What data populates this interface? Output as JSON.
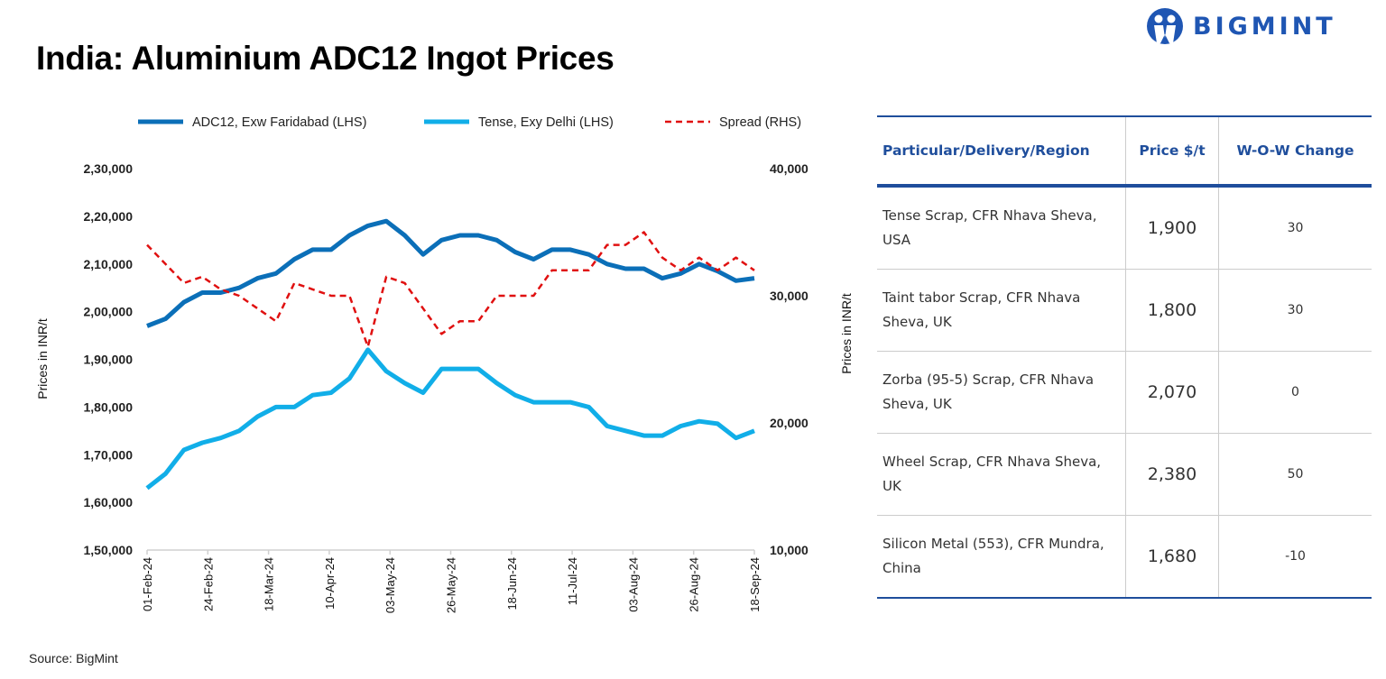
{
  "header": {
    "title": "India: Aluminium ADC12 Ingot Prices",
    "logo_text": "BIGMINT"
  },
  "source": "Source: BigMint",
  "colors": {
    "adc12": "#0b6fb8",
    "tense": "#11aee8",
    "spread": "#e01010",
    "table_accent": "#1f4e9c",
    "positive": "#3aa55a",
    "negative": "#e03a3a"
  },
  "chart_data": {
    "type": "line",
    "title": "India: Aluminium ADC12 Ingot Prices",
    "ylabel": "Prices in INR/t",
    "y2label": "Prices in INR/t",
    "ylim": [
      150000,
      230000
    ],
    "y2lim": [
      10000,
      40000
    ],
    "yticks": [
      "1,50,000",
      "1,60,000",
      "1,70,000",
      "1,80,000",
      "1,90,000",
      "2,00,000",
      "2,10,000",
      "2,20,000",
      "2,30,000"
    ],
    "y2ticks": [
      "10,000",
      "20,000",
      "30,000",
      "40,000"
    ],
    "xtick_labels": [
      "01-Feb-24",
      "24-Feb-24",
      "18-Mar-24",
      "10-Apr-24",
      "03-May-24",
      "26-May-24",
      "18-Jun-24",
      "11-Jul-24",
      "03-Aug-24",
      "26-Aug-24",
      "18-Sep-24"
    ],
    "x": [
      "2024-02-01",
      "2024-02-08",
      "2024-02-15",
      "2024-02-22",
      "2024-02-29",
      "2024-03-07",
      "2024-03-14",
      "2024-03-21",
      "2024-03-28",
      "2024-04-04",
      "2024-04-11",
      "2024-04-18",
      "2024-04-25",
      "2024-05-02",
      "2024-05-09",
      "2024-05-16",
      "2024-05-23",
      "2024-05-30",
      "2024-06-06",
      "2024-06-13",
      "2024-06-20",
      "2024-06-27",
      "2024-07-04",
      "2024-07-11",
      "2024-07-18",
      "2024-07-25",
      "2024-08-01",
      "2024-08-08",
      "2024-08-15",
      "2024-08-22",
      "2024-08-29",
      "2024-09-05",
      "2024-09-12",
      "2024-09-18"
    ],
    "grid": false,
    "legend_position": "top",
    "series": [
      {
        "name": "ADC12, Exw Faridabad (LHS)",
        "axis": "left",
        "style": "solid",
        "values": [
          197000,
          198500,
          202000,
          204000,
          204000,
          205000,
          207000,
          208000,
          211000,
          213000,
          213000,
          216000,
          218000,
          219000,
          216000,
          212000,
          215000,
          216000,
          216000,
          215000,
          212500,
          211000,
          213000,
          213000,
          212000,
          210000,
          209000,
          209000,
          207000,
          208000,
          210000,
          208500,
          206500,
          207000
        ]
      },
      {
        "name": "Tense, Exy Delhi (LHS)",
        "axis": "left",
        "style": "solid",
        "values": [
          163000,
          166000,
          171000,
          172500,
          173500,
          175000,
          178000,
          180000,
          180000,
          182500,
          183000,
          186000,
          192000,
          187500,
          185000,
          183000,
          188000,
          188000,
          188000,
          185000,
          182500,
          181000,
          181000,
          181000,
          180000,
          176000,
          175000,
          174000,
          174000,
          176000,
          177000,
          176500,
          173500,
          175000
        ]
      },
      {
        "name": "Spread (RHS)",
        "axis": "right",
        "style": "dashed",
        "values": [
          34000,
          32500,
          31000,
          31500,
          30500,
          30000,
          29000,
          28000,
          31000,
          30500,
          30000,
          30000,
          26000,
          31500,
          31000,
          29000,
          27000,
          28000,
          28000,
          30000,
          30000,
          30000,
          32000,
          32000,
          32000,
          34000,
          34000,
          35000,
          33000,
          32000,
          33000,
          32000,
          33000,
          32000
        ]
      }
    ]
  },
  "table": {
    "headers": [
      "Particular/Delivery/Region",
      "Price $/t",
      "W-O-W Change"
    ],
    "rows": [
      {
        "item": "Tense Scrap, CFR Nhava Sheva, USA",
        "price": "1,900",
        "change": "30",
        "trend": "up"
      },
      {
        "item": "Taint tabor Scrap, CFR Nhava Sheva, UK",
        "price": "1,800",
        "change": "30",
        "trend": "up"
      },
      {
        "item": "Zorba (95-5) Scrap, CFR Nhava Sheva, UK",
        "price": "2,070",
        "change": "0",
        "trend": "flat"
      },
      {
        "item": "Wheel Scrap, CFR Nhava Sheva, UK",
        "price": "2,380",
        "change": "50",
        "trend": "up"
      },
      {
        "item": "Silicon Metal (553), CFR Mundra, China",
        "price": "1,680",
        "change": "-10",
        "trend": "down"
      }
    ]
  }
}
